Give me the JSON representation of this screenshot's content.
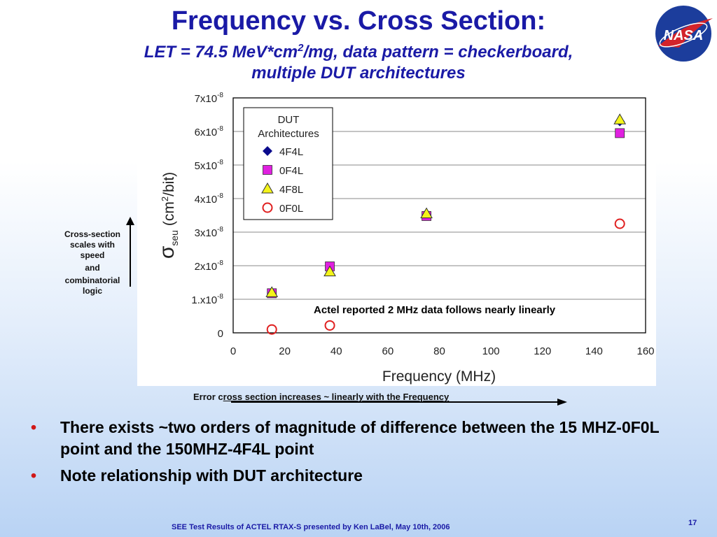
{
  "slide": {
    "title": "Frequency vs. Cross Section:",
    "subtitle_line1_pre": "LET = 74.5 MeV*cm",
    "subtitle_line1_sup": "2",
    "subtitle_line1_post": "/mg, data pattern = checkerboard,",
    "subtitle_line2": "multiple DUT architectures",
    "logo_text": "NASA",
    "side_note": [
      "Cross-section scales with speed",
      "and",
      "combinatorial logic"
    ],
    "bottom_note_pre": "Error c",
    "bottom_note_underlined": "ross section increases ~ linearly with the  Frequency",
    "bullets": [
      "There exists ~two orders of magnitude of difference between the 15 MHZ-0F0L point and the 150MHZ-4F4L point",
      "Note relationship with DUT architecture"
    ],
    "bullet_color": "#d01818",
    "title_color": "#1a1aa6",
    "footer": "SEE Test Results of ACTEL RTAX-S presented by Ken LaBel, May 10th, 2006",
    "page_number": "17"
  },
  "chart_data": {
    "type": "scatter",
    "xlabel": "Frequency (MHz)",
    "ylabel_symbol": "σ",
    "ylabel_sub": "seu",
    "ylabel_unit_pre": "(cm",
    "ylabel_unit_sup": "2",
    "ylabel_unit_post": "/bit)",
    "xlim": [
      0,
      160
    ],
    "ylim": [
      0,
      7e-08
    ],
    "xticks": [
      0,
      20,
      40,
      60,
      80,
      100,
      120,
      140,
      160
    ],
    "yticks": [
      {
        "value": 0,
        "label": "0",
        "exp": ""
      },
      {
        "value": 1e-08,
        "label": "1.x10",
        "exp": "-8"
      },
      {
        "value": 2e-08,
        "label": "2x10",
        "exp": "-8"
      },
      {
        "value": 3e-08,
        "label": "3x10",
        "exp": "-8"
      },
      {
        "value": 4e-08,
        "label": "4x10",
        "exp": "-8"
      },
      {
        "value": 5e-08,
        "label": "5x10",
        "exp": "-8"
      },
      {
        "value": 6e-08,
        "label": "6x10",
        "exp": "-8"
      },
      {
        "value": 7e-08,
        "label": "7x10",
        "exp": "-8"
      }
    ],
    "grid": "horizontal",
    "legend_title": [
      "DUT",
      "Architectures"
    ],
    "legend_position": "top-left",
    "annotation": "Actel reported 2 MHz data follows nearly linearly",
    "series": [
      {
        "name": "4F4L",
        "marker": "diamond",
        "color": "#0a0a8c",
        "points": [
          [
            15,
            1.2e-08
          ],
          [
            37.5,
            1.95e-08
          ],
          [
            75,
            3.5e-08
          ],
          [
            150,
            6.3e-08
          ]
        ]
      },
      {
        "name": "0F4L",
        "marker": "square",
        "color": "#e020e0",
        "points": [
          [
            15,
            1.18e-08
          ],
          [
            37.5,
            1.98e-08
          ],
          [
            75,
            3.48e-08
          ],
          [
            150,
            5.95e-08
          ]
        ]
      },
      {
        "name": "4F8L",
        "marker": "triangle",
        "color": "#f4f41a",
        "points": [
          [
            15,
            1.2e-08
          ],
          [
            37.5,
            1.82e-08
          ],
          [
            75,
            3.55e-08
          ],
          [
            150,
            6.35e-08
          ]
        ]
      },
      {
        "name": "0F0L",
        "marker": "circle",
        "color": "#e02020",
        "points": [
          [
            15,
            1e-09
          ],
          [
            37.5,
            2.2e-09
          ],
          [
            150,
            3.25e-08
          ]
        ]
      }
    ]
  }
}
